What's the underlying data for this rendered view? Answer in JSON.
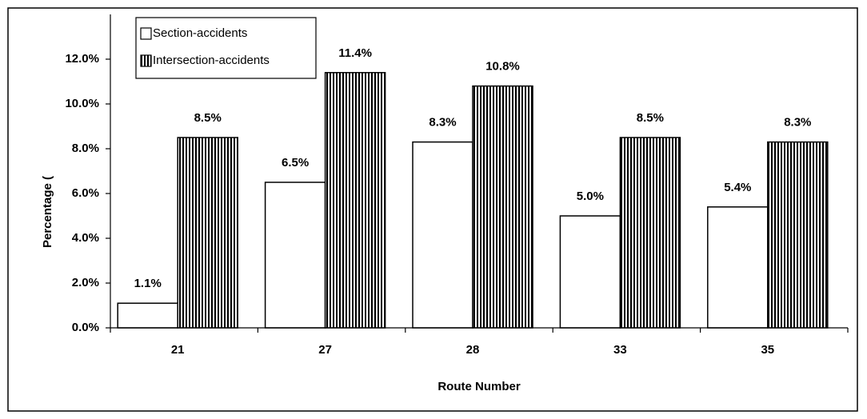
{
  "chart_data": {
    "type": "bar",
    "y_axis_label": "Percentage (",
    "x_axis_label": "Route Number",
    "categories": [
      "21",
      "27",
      "28",
      "33",
      "35"
    ],
    "series": [
      {
        "name": "Section-accidents",
        "color": "#ffffff",
        "values": [
          1.1,
          6.5,
          8.3,
          5.0,
          5.4
        ],
        "value_labels": [
          "1.1%",
          "6.5%",
          "8.3%",
          "5.0%",
          "5.4%"
        ]
      },
      {
        "name": "Intersection-accidents",
        "color": "#000000",
        "hatch": "vertical",
        "values": [
          8.5,
          11.4,
          10.8,
          8.5,
          8.3
        ],
        "value_labels": [
          "8.5%",
          "11.4%",
          "10.8%",
          "8.5%",
          "8.3%"
        ]
      }
    ],
    "ylim": [
      0,
      14
    ],
    "yticks": [
      {
        "value": 0,
        "label": "0.0%"
      },
      {
        "value": 2,
        "label": "2.0%"
      },
      {
        "value": 4,
        "label": "4.0%"
      },
      {
        "value": 6,
        "label": "6.0%"
      },
      {
        "value": 8,
        "label": "8.0%"
      },
      {
        "value": 10,
        "label": "10.0%"
      },
      {
        "value": 12,
        "label": "12.0%"
      }
    ],
    "legend": "top-left"
  }
}
